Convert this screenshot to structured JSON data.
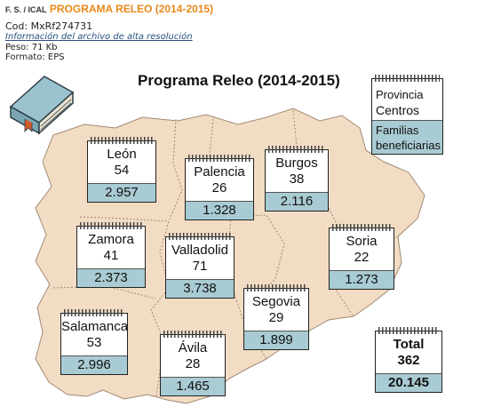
{
  "header": {
    "source": "F. S. / ICAL",
    "title": "PROGRAMA RELEO (2014-2015)",
    "code": "Cod: MxRf274731",
    "hires_link": "Información del archivo de alta resolución",
    "weight": "Peso: 71 Kb",
    "format": "Formato: EPS"
  },
  "figure": {
    "title": "Programa Releo (2014-2015)",
    "legend": {
      "province": "Provincia",
      "centers": "Centros",
      "families": "Familias beneficiarias"
    },
    "colors": {
      "map_fill": "#f2dcc4",
      "map_border": "#a08a74",
      "card_band": "#a9cbd3",
      "header_orange": "#e8891a"
    },
    "provinces": [
      {
        "name": "León",
        "centers": "54",
        "families": "2.957"
      },
      {
        "name": "Palencia",
        "centers": "26",
        "families": "1.328"
      },
      {
        "name": "Burgos",
        "centers": "38",
        "families": "2.116"
      },
      {
        "name": "Zamora",
        "centers": "41",
        "families": "2.373"
      },
      {
        "name": "Valladolid",
        "centers": "71",
        "families": "3.738"
      },
      {
        "name": "Soria",
        "centers": "22",
        "families": "1.273"
      },
      {
        "name": "Segovia",
        "centers": "29",
        "families": "1.899"
      },
      {
        "name": "Salamanca",
        "centers": "53",
        "families": "2.996"
      },
      {
        "name": "Ávila",
        "centers": "28",
        "families": "1.465"
      }
    ],
    "total": {
      "label": "Total",
      "centers": "362",
      "families": "20.145"
    },
    "book_icon": "book-icon"
  }
}
